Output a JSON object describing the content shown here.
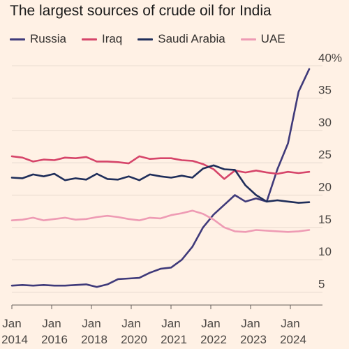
{
  "chart_data": {
    "type": "line",
    "title": "The largest sources of crude oil for India",
    "xlabel": "",
    "ylabel": "",
    "y_unit_suffix": "%",
    "ylim": [
      3,
      41
    ],
    "y_ticks": [
      5,
      10,
      15,
      20,
      25,
      30,
      35,
      40
    ],
    "y_tick_labels": [
      "5",
      "10",
      "15",
      "20",
      "25",
      "30",
      "35",
      "40%"
    ],
    "y_axis_position": "right",
    "gridlines": true,
    "legend_position": "top",
    "x_ticks": [
      {
        "month": "Jan",
        "year": "2014"
      },
      {
        "month": "Jan",
        "year": "2016"
      },
      {
        "month": "Jan",
        "year": "2018"
      },
      {
        "month": "Jan",
        "year": "2020"
      },
      {
        "month": "Jan",
        "year": "2021"
      },
      {
        "month": "Jan",
        "year": "2022"
      },
      {
        "month": "Jan",
        "year": "2023"
      },
      {
        "month": "Jan",
        "year": "2024"
      }
    ],
    "series": [
      {
        "name": "Russia",
        "color": "#3F3A7A",
        "values": [
          6.0,
          6.1,
          6.0,
          6.1,
          6.0,
          6.0,
          6.1,
          6.2,
          5.8,
          6.2,
          7.0,
          7.1,
          7.2,
          8.0,
          8.6,
          8.8,
          10.0,
          12.0,
          15.0,
          17.0,
          18.5,
          20.0,
          19.0,
          19.5,
          19.0,
          24.0,
          28.0,
          36.0,
          39.5
        ]
      },
      {
        "name": "Iraq",
        "color": "#D6456A",
        "values": [
          26.0,
          25.8,
          25.2,
          25.5,
          25.4,
          25.8,
          25.7,
          25.9,
          25.2,
          25.2,
          25.1,
          24.9,
          26.0,
          25.6,
          25.7,
          25.7,
          25.4,
          25.3,
          24.8,
          24.0,
          22.5,
          23.8,
          23.5,
          23.8,
          23.5,
          23.3,
          23.6,
          23.4,
          23.6
        ]
      },
      {
        "name": "Saudi Arabia",
        "color": "#1F2E5A",
        "values": [
          22.7,
          22.6,
          23.2,
          22.9,
          23.3,
          22.3,
          22.6,
          22.4,
          23.3,
          22.5,
          22.4,
          22.9,
          22.3,
          23.2,
          22.9,
          22.7,
          23.0,
          22.7,
          24.1,
          24.6,
          24.0,
          23.9,
          21.5,
          20.0,
          19.0,
          19.2,
          19.0,
          18.8,
          18.9
        ]
      },
      {
        "name": "UAE",
        "color": "#EE9BB4",
        "values": [
          16.1,
          16.2,
          16.5,
          16.1,
          16.3,
          16.5,
          16.2,
          16.3,
          16.6,
          16.8,
          16.6,
          16.3,
          16.1,
          16.5,
          16.4,
          16.9,
          17.2,
          17.6,
          17.1,
          16.2,
          15.0,
          14.4,
          14.3,
          14.6,
          14.5,
          14.4,
          14.3,
          14.4,
          14.6
        ]
      }
    ]
  }
}
